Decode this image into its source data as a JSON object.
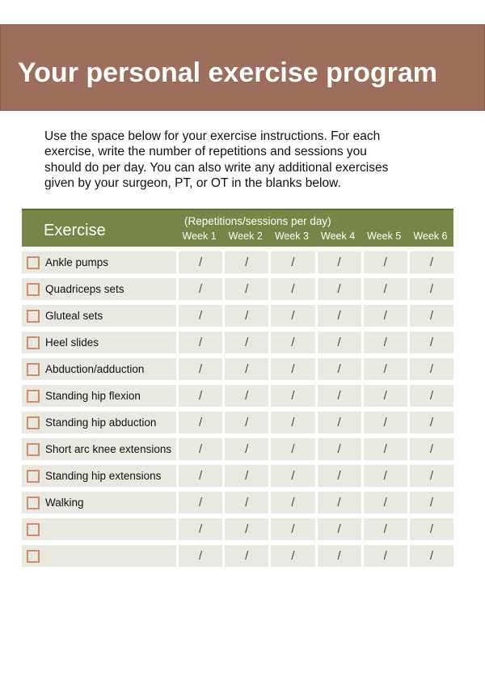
{
  "header": {
    "title": "Your personal exercise program"
  },
  "intro": {
    "lines": [
      "Use the space below for your exercise instructions. For each",
      "exercise, write the number of repetitions and sessions you",
      "should do per day. You can also write any additional exercises",
      "given by your surgeon, PT, or OT in the blanks below."
    ]
  },
  "table": {
    "exercise_header": "Exercise",
    "reps_header": "(Repetitions/sessions per day)",
    "week_labels": [
      "Week 1",
      "Week 2",
      "Week 3",
      "Week 4",
      "Week 5",
      "Week 6"
    ],
    "cell_placeholder": "/",
    "rows": [
      {
        "label": "Ankle pumps"
      },
      {
        "label": "Quadriceps sets"
      },
      {
        "label": "Gluteal sets"
      },
      {
        "label": "Heel slides"
      },
      {
        "label": "Abduction/adduction"
      },
      {
        "label": "Standing hip flexion"
      },
      {
        "label": "Standing hip abduction"
      },
      {
        "label": "Short arc knee extensions"
      },
      {
        "label": "Standing hip extensions"
      },
      {
        "label": "Walking"
      },
      {
        "label": ""
      },
      {
        "label": ""
      }
    ]
  },
  "colors": {
    "banner_brown": "#9c6e5b",
    "banner_border": "#8a5f4c",
    "header_green": "#778547",
    "header_green_dark_edge": "#5f6d35",
    "row_background": "#e9e8e1",
    "checkbox_border": "#d08c66",
    "slash_text": "#4c4c4c",
    "title_text": "#ffffff"
  }
}
